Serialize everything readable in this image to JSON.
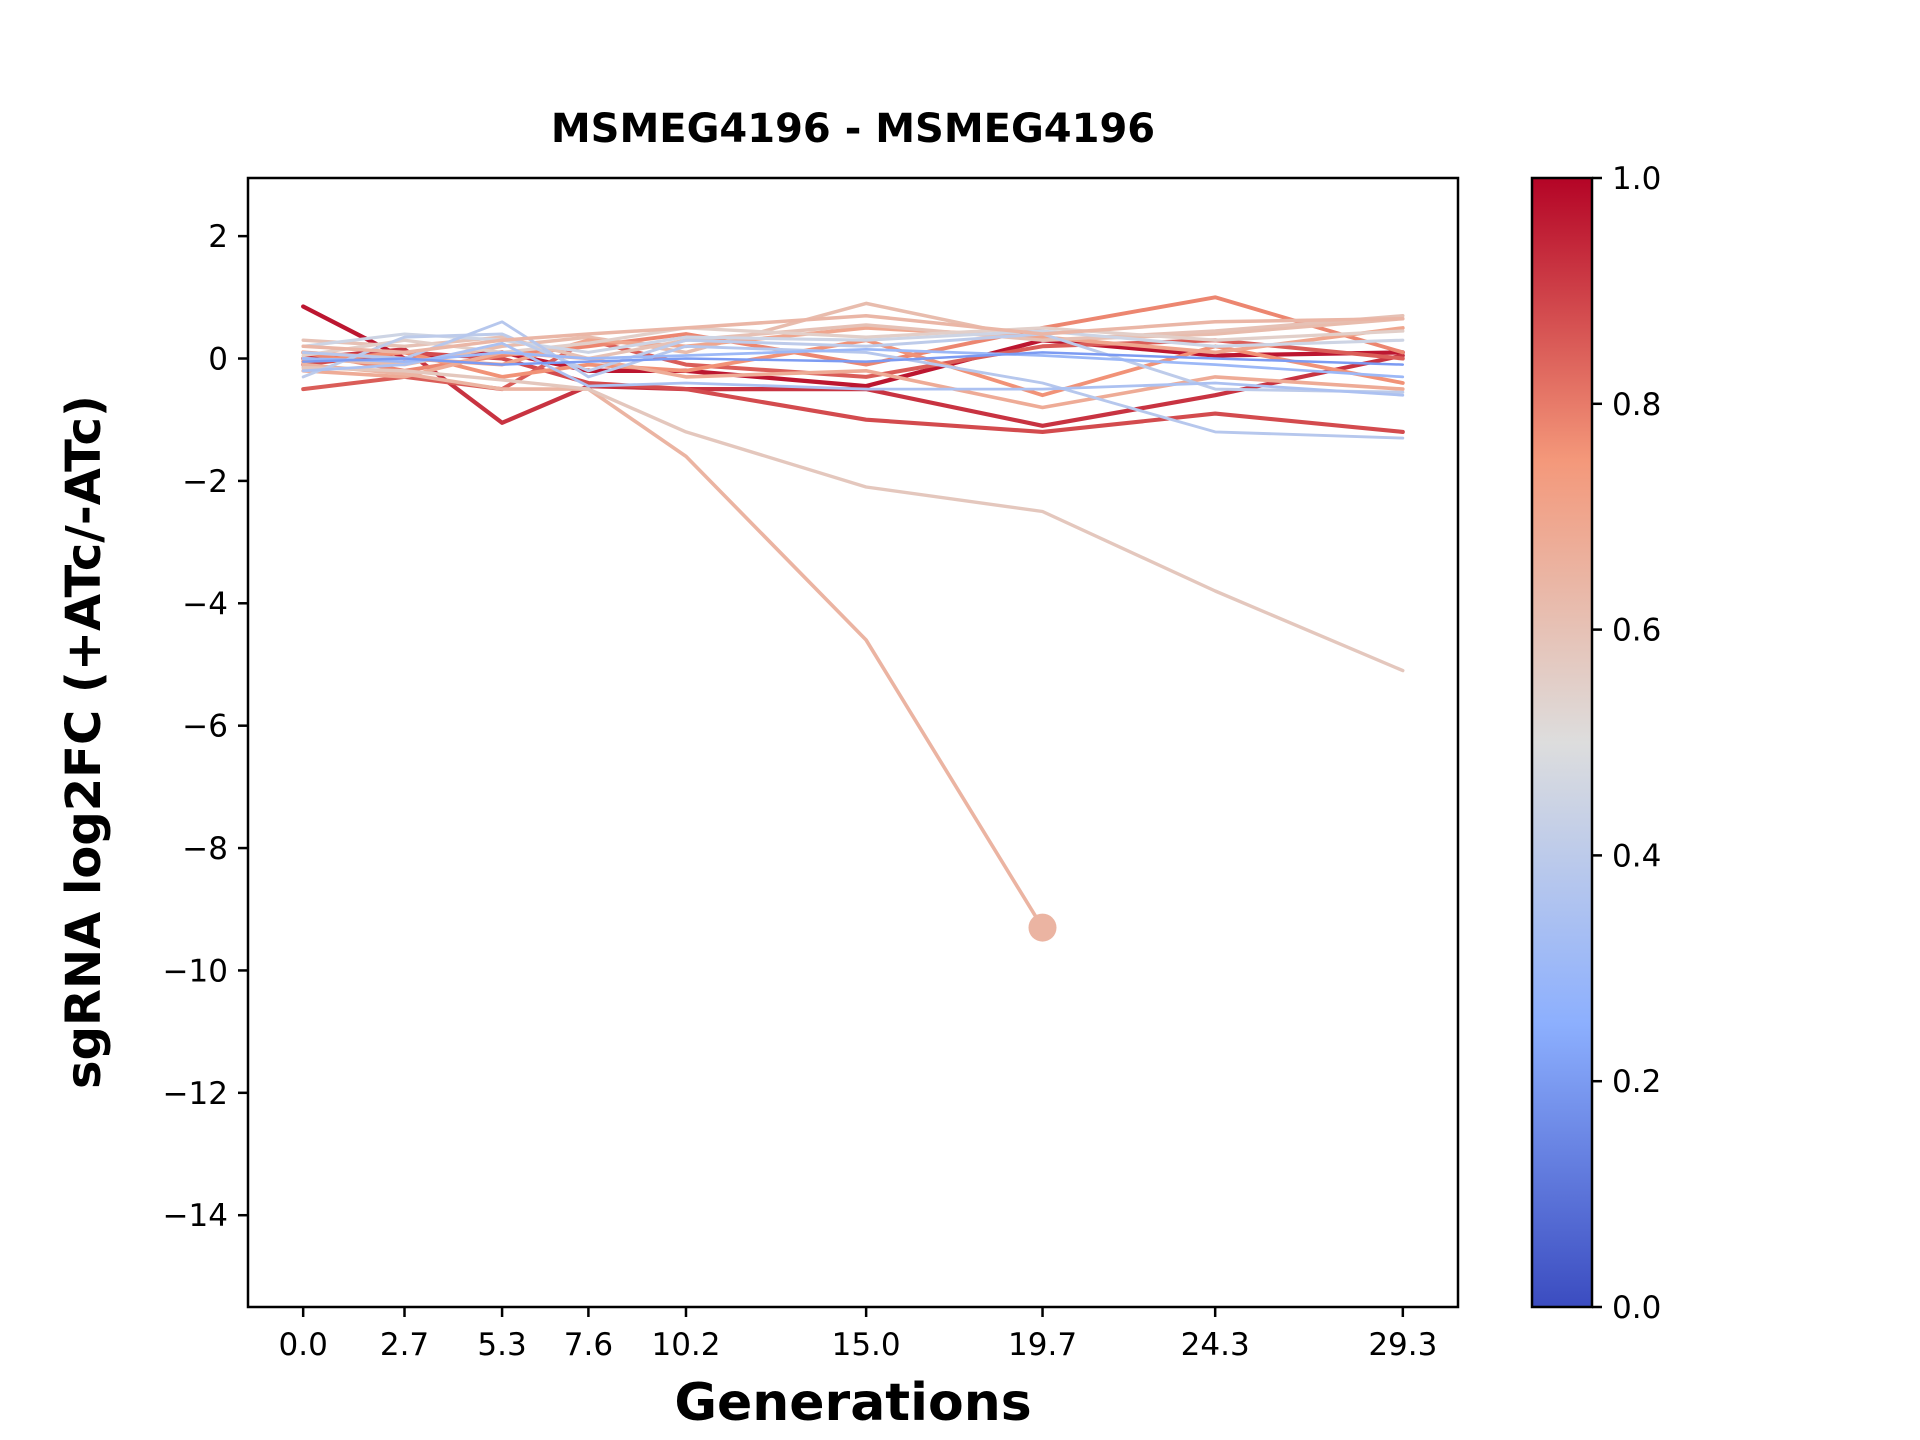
{
  "title": "MSMEG4196 - MSMEG4196",
  "xlabel": "Generations",
  "ylabel": "sgRNA log2FC (+ATc/-ATc)",
  "chart_data": {
    "type": "line",
    "title": "MSMEG4196 - MSMEG4196",
    "xlabel": "Generations",
    "ylabel": "sgRNA log2FC (+ATc/-ATc)",
    "x": [
      0.0,
      2.7,
      5.3,
      7.6,
      10.2,
      15.0,
      19.7,
      24.3,
      29.3
    ],
    "xlim": [
      -1.47,
      30.77
    ],
    "ylim": [
      -15.5,
      2.95
    ],
    "grid": false,
    "xticks": {
      "values": [
        0.0,
        2.7,
        5.3,
        7.6,
        10.2,
        15.0,
        19.7,
        24.3,
        29.3
      ],
      "labels": [
        "0.0",
        "2.7",
        "5.3",
        "7.6",
        "10.2",
        "15.0",
        "19.7",
        "24.3",
        "29.3"
      ]
    },
    "yticks": {
      "values": [
        2,
        0,
        -2,
        -4,
        -6,
        -8,
        -10,
        -12,
        -14
      ],
      "labels": [
        "2",
        "0",
        "−2",
        "−4",
        "−6",
        "−8",
        "−10",
        "−12",
        "−14"
      ]
    },
    "colorbar": {
      "min": 0.0,
      "max": 1.0,
      "position": "right",
      "ticks": {
        "values": [
          1.0,
          0.8,
          0.6,
          0.4,
          0.2,
          0.0
        ],
        "labels": [
          "1.0",
          "0.8",
          "0.6",
          "0.4",
          "0.2",
          "0.0"
        ]
      },
      "colormap_name": "coolwarm",
      "stops": [
        {
          "pos": 0.0,
          "color": "#3b4cc0"
        },
        {
          "pos": 0.25,
          "color": "#8caffe"
        },
        {
          "pos": 0.5,
          "color": "#dddddd"
        },
        {
          "pos": 0.75,
          "color": "#f4987a"
        },
        {
          "pos": 1.0,
          "color": "#b40426"
        }
      ]
    },
    "series": [
      {
        "color_value": 0.97,
        "y": [
          0.85,
          0.0,
          0.1,
          -0.2,
          -0.2,
          -0.45,
          0.3,
          0.05,
          0.1
        ],
        "marker_end": false
      },
      {
        "color_value": 0.92,
        "y": [
          0.0,
          0.15,
          -1.05,
          -0.45,
          -0.5,
          -0.5,
          -1.1,
          -0.6,
          0.05
        ],
        "marker_end": false
      },
      {
        "color_value": 0.88,
        "y": [
          -0.1,
          0.1,
          0.0,
          -0.4,
          -0.5,
          -1.0,
          -1.2,
          -0.9,
          -1.2
        ],
        "marker_end": false
      },
      {
        "color_value": 0.85,
        "y": [
          -0.5,
          -0.3,
          -0.5,
          0.3,
          -0.1,
          -0.3,
          0.2,
          0.3,
          0.0
        ],
        "marker_end": false
      },
      {
        "color_value": 0.78,
        "y": [
          0.1,
          -0.2,
          0.05,
          0.2,
          0.4,
          -0.1,
          0.5,
          1.0,
          0.1
        ],
        "marker_end": false
      },
      {
        "color_value": 0.76,
        "y": [
          -0.05,
          0.1,
          -0.3,
          -0.1,
          -0.2,
          0.3,
          -0.6,
          0.2,
          -0.4
        ],
        "marker_end": false
      },
      {
        "color_value": 0.62,
        "y": [
          0.0,
          -0.1,
          0.2,
          0.35,
          0.1,
          0.9,
          0.3,
          0.4,
          0.65
        ],
        "marker_end": false
      },
      {
        "color_value": 0.7,
        "y": [
          0.1,
          0.0,
          -0.1,
          0.3,
          0.2,
          0.5,
          0.35,
          0.1,
          0.5
        ],
        "marker_end": false
      },
      {
        "color_value": 0.68,
        "y": [
          -0.2,
          -0.3,
          0.1,
          0.0,
          -0.3,
          -0.2,
          -0.8,
          -0.3,
          -0.5
        ],
        "marker_end": false
      },
      {
        "color_value": 0.65,
        "y": [
          -0.1,
          -0.25,
          -0.5,
          -0.5,
          -1.6,
          -4.6,
          -9.3
        ],
        "marker_end": true
      },
      {
        "color_value": 0.58,
        "y": [
          -0.15,
          -0.2,
          -0.35,
          -0.5,
          -1.2,
          -2.1,
          -2.5,
          -3.8,
          -5.1
        ],
        "marker_end": false
      },
      {
        "color_value": 0.6,
        "y": [
          0.3,
          0.2,
          0.35,
          0.0,
          0.3,
          0.55,
          0.3,
          0.45,
          0.7
        ],
        "marker_end": false
      },
      {
        "color_value": 0.55,
        "y": [
          0.05,
          0.3,
          0.1,
          0.25,
          0.5,
          0.35,
          0.5,
          0.3,
          0.45
        ],
        "marker_end": false
      },
      {
        "color_value": 0.45,
        "y": [
          0.2,
          0.4,
          0.3,
          0.1,
          0.35,
          0.3,
          0.45,
          0.2,
          0.3
        ],
        "marker_end": false
      },
      {
        "color_value": 0.4,
        "y": [
          -0.3,
          0.35,
          0.4,
          -0.2,
          0.3,
          0.2,
          0.4,
          -0.5,
          -0.55
        ],
        "marker_end": false
      },
      {
        "color_value": 0.38,
        "y": [
          0.1,
          0.0,
          0.6,
          -0.3,
          0.2,
          0.1,
          -0.4,
          -1.2,
          -1.3
        ],
        "marker_end": false
      },
      {
        "color_value": 0.35,
        "y": [
          -0.2,
          -0.1,
          0.25,
          -0.45,
          -0.4,
          -0.5,
          -0.5,
          -0.4,
          -0.6
        ],
        "marker_end": false
      },
      {
        "color_value": 0.3,
        "y": [
          0.0,
          -0.05,
          0.1,
          0.0,
          0.05,
          0.15,
          0.05,
          -0.1,
          -0.3
        ],
        "marker_end": false
      },
      {
        "color_value": 0.2,
        "y": [
          -0.05,
          0.0,
          -0.1,
          -0.05,
          0.0,
          -0.05,
          0.1,
          0.0,
          -0.1
        ],
        "marker_end": false
      },
      {
        "color_value": 0.64,
        "y": [
          0.2,
          0.1,
          0.3,
          0.4,
          0.5,
          0.7,
          0.4,
          0.6,
          0.65
        ],
        "marker_end": false
      }
    ]
  }
}
